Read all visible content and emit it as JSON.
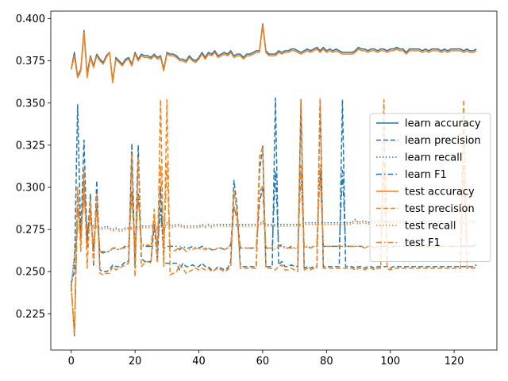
{
  "chart_data": {
    "type": "line",
    "title": "",
    "xlabel": "",
    "ylabel": "",
    "xlim": [
      -6.4,
      133.4
    ],
    "ylim": [
      0.2035,
      0.4045
    ],
    "xticks": [
      0,
      20,
      40,
      60,
      80,
      100,
      120
    ],
    "yticks": [
      0.225,
      0.25,
      0.275,
      0.3,
      0.325,
      0.35,
      0.375,
      0.4
    ],
    "ytick_labels": [
      "0.225",
      "0.250",
      "0.275",
      "0.300",
      "0.325",
      "0.350",
      "0.375",
      "0.400"
    ],
    "grid": false,
    "legend_position": "center-right",
    "legend": [
      "learn accuracy",
      "learn precision",
      "learn recall",
      "learn F1",
      "test accuracy",
      "test precision",
      "test recall",
      "test F1"
    ],
    "colors": {
      "learn": "#1f77b4",
      "test": "#ff7f0e"
    },
    "styles": {
      "accuracy": "solid",
      "precision": "dashed",
      "recall": "dotted",
      "F1": "dashdot"
    },
    "series": [
      {
        "name": "learn accuracy",
        "color": "#1f77b4",
        "style": "solid",
        "values": [
          0.37,
          0.38,
          0.366,
          0.37,
          0.393,
          0.367,
          0.378,
          0.372,
          0.379,
          0.376,
          0.374,
          0.378,
          0.38,
          0.363,
          0.377,
          0.375,
          0.373,
          0.376,
          0.377,
          0.373,
          0.38,
          0.376,
          0.379,
          0.378,
          0.378,
          0.377,
          0.379,
          0.377,
          0.378,
          0.37,
          0.38,
          0.379,
          0.379,
          0.378,
          0.376,
          0.376,
          0.375,
          0.378,
          0.376,
          0.375,
          0.377,
          0.38,
          0.377,
          0.38,
          0.379,
          0.381,
          0.378,
          0.379,
          0.38,
          0.379,
          0.381,
          0.378,
          0.379,
          0.379,
          0.377,
          0.379,
          0.379,
          0.38,
          0.381,
          0.381,
          0.397,
          0.381,
          0.379,
          0.379,
          0.379,
          0.381,
          0.38,
          0.381,
          0.381,
          0.382,
          0.382,
          0.381,
          0.38,
          0.381,
          0.382,
          0.381,
          0.382,
          0.383,
          0.381,
          0.383,
          0.381,
          0.382,
          0.381,
          0.382,
          0.381,
          0.38,
          0.38,
          0.38,
          0.38,
          0.381,
          0.383,
          0.382,
          0.382,
          0.381,
          0.382,
          0.382,
          0.381,
          0.382,
          0.382,
          0.381,
          0.382,
          0.382,
          0.383,
          0.382,
          0.382,
          0.38,
          0.382,
          0.382,
          0.382,
          0.382,
          0.381,
          0.382,
          0.381,
          0.382,
          0.382,
          0.382,
          0.381,
          0.382,
          0.381,
          0.382,
          0.382,
          0.382,
          0.382,
          0.381,
          0.382,
          0.381,
          0.381,
          0.382
        ]
      },
      {
        "name": "learn precision",
        "color": "#1f77b4",
        "style": "dashed",
        "values": [
          0.243,
          0.25,
          0.349,
          0.27,
          0.328,
          0.265,
          0.296,
          0.253,
          0.304,
          0.251,
          0.25,
          0.25,
          0.251,
          0.254,
          0.253,
          0.253,
          0.254,
          0.256,
          0.256,
          0.326,
          0.253,
          0.325,
          0.258,
          0.256,
          0.256,
          0.256,
          0.278,
          0.256,
          0.3,
          0.255,
          0.255,
          0.255,
          0.255,
          0.255,
          0.251,
          0.255,
          0.253,
          0.253,
          0.254,
          0.253,
          0.253,
          0.255,
          0.253,
          0.253,
          0.251,
          0.251,
          0.253,
          0.252,
          0.251,
          0.252,
          0.256,
          0.304,
          0.288,
          0.253,
          0.253,
          0.253,
          0.253,
          0.253,
          0.253,
          0.309,
          0.325,
          0.253,
          0.253,
          0.253,
          0.353,
          0.254,
          0.256,
          0.253,
          0.253,
          0.254,
          0.253,
          0.253,
          0.352,
          0.252,
          0.253,
          0.252,
          0.253,
          0.253,
          0.353,
          0.253,
          0.253,
          0.253,
          0.253,
          0.253,
          0.253,
          0.352,
          0.253,
          0.253,
          0.253,
          0.252,
          0.253,
          0.253,
          0.252,
          0.253,
          0.253,
          0.252,
          0.253,
          0.253,
          0.253,
          0.253,
          0.252,
          0.253,
          0.253,
          0.253,
          0.253,
          0.253,
          0.253,
          0.253,
          0.253,
          0.253,
          0.253,
          0.253,
          0.253,
          0.253,
          0.253,
          0.253,
          0.253,
          0.253,
          0.253,
          0.253,
          0.253,
          0.253,
          0.253,
          0.253,
          0.253,
          0.253,
          0.253,
          0.254
        ]
      },
      {
        "name": "learn recall",
        "color": "#1f77b4",
        "style": "dotted",
        "values": [
          0.242,
          0.26,
          0.276,
          0.275,
          0.294,
          0.276,
          0.279,
          0.277,
          0.277,
          0.276,
          0.276,
          0.277,
          0.276,
          0.275,
          0.276,
          0.275,
          0.275,
          0.276,
          0.276,
          0.276,
          0.277,
          0.276,
          0.277,
          0.277,
          0.277,
          0.277,
          0.278,
          0.276,
          0.278,
          0.276,
          0.279,
          0.278,
          0.277,
          0.278,
          0.278,
          0.277,
          0.277,
          0.277,
          0.277,
          0.277,
          0.277,
          0.278,
          0.277,
          0.278,
          0.277,
          0.278,
          0.278,
          0.278,
          0.278,
          0.278,
          0.278,
          0.278,
          0.278,
          0.278,
          0.278,
          0.278,
          0.278,
          0.278,
          0.278,
          0.278,
          0.28,
          0.278,
          0.278,
          0.278,
          0.278,
          0.278,
          0.278,
          0.278,
          0.278,
          0.278,
          0.278,
          0.278,
          0.278,
          0.279,
          0.279,
          0.279,
          0.279,
          0.279,
          0.279,
          0.279,
          0.279,
          0.279,
          0.279,
          0.279,
          0.279,
          0.279,
          0.279,
          0.279,
          0.279,
          0.281,
          0.279,
          0.28,
          0.28,
          0.279,
          0.28,
          0.28,
          0.28,
          0.28,
          0.28,
          0.28,
          0.28,
          0.28,
          0.28,
          0.28,
          0.28,
          0.28,
          0.28,
          0.28,
          0.28,
          0.28,
          0.28,
          0.28,
          0.28,
          0.28,
          0.28,
          0.28,
          0.28,
          0.28,
          0.28,
          0.28,
          0.28,
          0.28,
          0.28,
          0.28,
          0.28,
          0.28,
          0.28,
          0.28
        ]
      },
      {
        "name": "learn F1",
        "color": "#1f77b4",
        "style": "dashdot",
        "values": [
          0.242,
          0.212,
          0.296,
          0.27,
          0.304,
          0.27,
          0.287,
          0.262,
          0.29,
          0.262,
          0.261,
          0.262,
          0.262,
          0.264,
          0.264,
          0.263,
          0.264,
          0.265,
          0.265,
          0.298,
          0.264,
          0.296,
          0.267,
          0.265,
          0.265,
          0.265,
          0.277,
          0.265,
          0.287,
          0.264,
          0.265,
          0.265,
          0.265,
          0.265,
          0.263,
          0.265,
          0.264,
          0.264,
          0.265,
          0.264,
          0.264,
          0.265,
          0.264,
          0.264,
          0.263,
          0.263,
          0.264,
          0.264,
          0.263,
          0.264,
          0.266,
          0.289,
          0.281,
          0.264,
          0.264,
          0.264,
          0.264,
          0.264,
          0.264,
          0.291,
          0.3,
          0.264,
          0.264,
          0.264,
          0.31,
          0.265,
          0.266,
          0.264,
          0.264,
          0.265,
          0.264,
          0.264,
          0.31,
          0.264,
          0.265,
          0.264,
          0.265,
          0.265,
          0.311,
          0.265,
          0.265,
          0.265,
          0.265,
          0.265,
          0.265,
          0.31,
          0.265,
          0.265,
          0.265,
          0.265,
          0.265,
          0.265,
          0.264,
          0.265,
          0.265,
          0.264,
          0.265,
          0.265,
          0.265,
          0.265,
          0.264,
          0.265,
          0.265,
          0.265,
          0.265,
          0.265,
          0.265,
          0.265,
          0.265,
          0.265,
          0.265,
          0.265,
          0.265,
          0.265,
          0.265,
          0.265,
          0.265,
          0.265,
          0.265,
          0.265,
          0.265,
          0.265,
          0.265,
          0.265,
          0.265,
          0.265,
          0.265,
          0.266
        ]
      },
      {
        "name": "test accuracy",
        "color": "#ff7f0e",
        "style": "solid",
        "values": [
          0.37,
          0.378,
          0.365,
          0.369,
          0.392,
          0.365,
          0.377,
          0.371,
          0.378,
          0.375,
          0.373,
          0.377,
          0.38,
          0.362,
          0.376,
          0.374,
          0.372,
          0.375,
          0.376,
          0.372,
          0.379,
          0.375,
          0.378,
          0.377,
          0.377,
          0.376,
          0.378,
          0.376,
          0.377,
          0.369,
          0.379,
          0.378,
          0.378,
          0.377,
          0.375,
          0.375,
          0.374,
          0.377,
          0.375,
          0.374,
          0.376,
          0.379,
          0.376,
          0.379,
          0.378,
          0.38,
          0.377,
          0.378,
          0.379,
          0.378,
          0.38,
          0.377,
          0.378,
          0.378,
          0.376,
          0.378,
          0.378,
          0.379,
          0.38,
          0.38,
          0.396,
          0.38,
          0.378,
          0.378,
          0.378,
          0.38,
          0.379,
          0.38,
          0.38,
          0.381,
          0.381,
          0.38,
          0.379,
          0.38,
          0.381,
          0.38,
          0.381,
          0.382,
          0.38,
          0.382,
          0.38,
          0.381,
          0.38,
          0.381,
          0.38,
          0.379,
          0.379,
          0.379,
          0.379,
          0.38,
          0.382,
          0.381,
          0.381,
          0.38,
          0.381,
          0.381,
          0.38,
          0.381,
          0.381,
          0.38,
          0.381,
          0.381,
          0.382,
          0.381,
          0.381,
          0.379,
          0.381,
          0.381,
          0.381,
          0.381,
          0.38,
          0.381,
          0.38,
          0.381,
          0.381,
          0.381,
          0.38,
          0.381,
          0.38,
          0.381,
          0.381,
          0.381,
          0.381,
          0.38,
          0.381,
          0.38,
          0.38,
          0.381
        ]
      },
      {
        "name": "test precision",
        "color": "#ff7f0e",
        "style": "dashed",
        "values": [
          0.241,
          0.213,
          0.3,
          0.262,
          0.31,
          0.252,
          0.292,
          0.255,
          0.296,
          0.249,
          0.248,
          0.249,
          0.249,
          0.253,
          0.251,
          0.252,
          0.253,
          0.254,
          0.255,
          0.32,
          0.247,
          0.318,
          0.253,
          0.255,
          0.256,
          0.255,
          0.287,
          0.255,
          0.352,
          0.253,
          0.352,
          0.248,
          0.249,
          0.25,
          0.254,
          0.252,
          0.249,
          0.25,
          0.251,
          0.252,
          0.251,
          0.252,
          0.251,
          0.252,
          0.25,
          0.251,
          0.252,
          0.251,
          0.25,
          0.251,
          0.253,
          0.298,
          0.285,
          0.252,
          0.252,
          0.252,
          0.252,
          0.252,
          0.252,
          0.318,
          0.324,
          0.252,
          0.252,
          0.252,
          0.251,
          0.253,
          0.254,
          0.251,
          0.251,
          0.252,
          0.251,
          0.25,
          0.352,
          0.251,
          0.252,
          0.251,
          0.252,
          0.252,
          0.352,
          0.252,
          0.252,
          0.252,
          0.252,
          0.252,
          0.252,
          0.252,
          0.252,
          0.252,
          0.252,
          0.251,
          0.252,
          0.252,
          0.251,
          0.252,
          0.252,
          0.251,
          0.252,
          0.252,
          0.352,
          0.252,
          0.251,
          0.252,
          0.252,
          0.252,
          0.252,
          0.252,
          0.252,
          0.252,
          0.252,
          0.252,
          0.252,
          0.252,
          0.252,
          0.252,
          0.252,
          0.252,
          0.252,
          0.252,
          0.252,
          0.252,
          0.252,
          0.252,
          0.252,
          0.352,
          0.252,
          0.252,
          0.252,
          0.253
        ]
      },
      {
        "name": "test recall",
        "color": "#ff7f0e",
        "style": "dotted",
        "values": [
          0.241,
          0.258,
          0.275,
          0.274,
          0.292,
          0.275,
          0.278,
          0.276,
          0.276,
          0.275,
          0.275,
          0.276,
          0.275,
          0.274,
          0.275,
          0.274,
          0.274,
          0.275,
          0.275,
          0.275,
          0.276,
          0.275,
          0.276,
          0.276,
          0.276,
          0.276,
          0.277,
          0.275,
          0.277,
          0.275,
          0.278,
          0.277,
          0.276,
          0.277,
          0.277,
          0.276,
          0.276,
          0.276,
          0.276,
          0.276,
          0.276,
          0.277,
          0.276,
          0.277,
          0.276,
          0.277,
          0.277,
          0.277,
          0.277,
          0.277,
          0.277,
          0.277,
          0.277,
          0.277,
          0.277,
          0.277,
          0.277,
          0.277,
          0.277,
          0.277,
          0.279,
          0.277,
          0.277,
          0.277,
          0.277,
          0.277,
          0.277,
          0.277,
          0.277,
          0.277,
          0.277,
          0.277,
          0.277,
          0.278,
          0.278,
          0.278,
          0.278,
          0.278,
          0.278,
          0.278,
          0.278,
          0.278,
          0.278,
          0.278,
          0.278,
          0.278,
          0.278,
          0.278,
          0.278,
          0.28,
          0.278,
          0.279,
          0.279,
          0.278,
          0.279,
          0.279,
          0.279,
          0.279,
          0.279,
          0.279,
          0.279,
          0.279,
          0.279,
          0.279,
          0.279,
          0.279,
          0.279,
          0.279,
          0.279,
          0.279,
          0.279,
          0.279,
          0.279,
          0.279,
          0.279,
          0.279,
          0.279,
          0.279,
          0.279,
          0.279,
          0.279,
          0.279,
          0.279,
          0.279,
          0.279,
          0.279,
          0.279,
          0.279
        ]
      },
      {
        "name": "test F1",
        "color": "#ff7f0e",
        "style": "dashdot",
        "values": [
          0.241,
          0.214,
          0.287,
          0.268,
          0.301,
          0.264,
          0.285,
          0.266,
          0.286,
          0.262,
          0.262,
          0.262,
          0.262,
          0.264,
          0.263,
          0.263,
          0.264,
          0.264,
          0.265,
          0.296,
          0.262,
          0.295,
          0.265,
          0.265,
          0.266,
          0.265,
          0.282,
          0.265,
          0.313,
          0.264,
          0.314,
          0.262,
          0.262,
          0.263,
          0.265,
          0.264,
          0.262,
          0.263,
          0.263,
          0.264,
          0.263,
          0.264,
          0.263,
          0.264,
          0.263,
          0.263,
          0.264,
          0.264,
          0.263,
          0.264,
          0.265,
          0.288,
          0.281,
          0.264,
          0.264,
          0.264,
          0.264,
          0.264,
          0.264,
          0.297,
          0.301,
          0.264,
          0.264,
          0.264,
          0.263,
          0.265,
          0.265,
          0.264,
          0.264,
          0.264,
          0.264,
          0.263,
          0.313,
          0.264,
          0.265,
          0.264,
          0.265,
          0.265,
          0.313,
          0.265,
          0.265,
          0.265,
          0.265,
          0.265,
          0.265,
          0.265,
          0.265,
          0.265,
          0.265,
          0.265,
          0.265,
          0.265,
          0.264,
          0.265,
          0.265,
          0.264,
          0.265,
          0.265,
          0.314,
          0.265,
          0.264,
          0.265,
          0.265,
          0.265,
          0.265,
          0.265,
          0.265,
          0.265,
          0.265,
          0.265,
          0.265,
          0.265,
          0.265,
          0.265,
          0.265,
          0.265,
          0.265,
          0.265,
          0.265,
          0.265,
          0.265,
          0.265,
          0.265,
          0.314,
          0.265,
          0.265,
          0.265,
          0.266
        ]
      }
    ]
  }
}
